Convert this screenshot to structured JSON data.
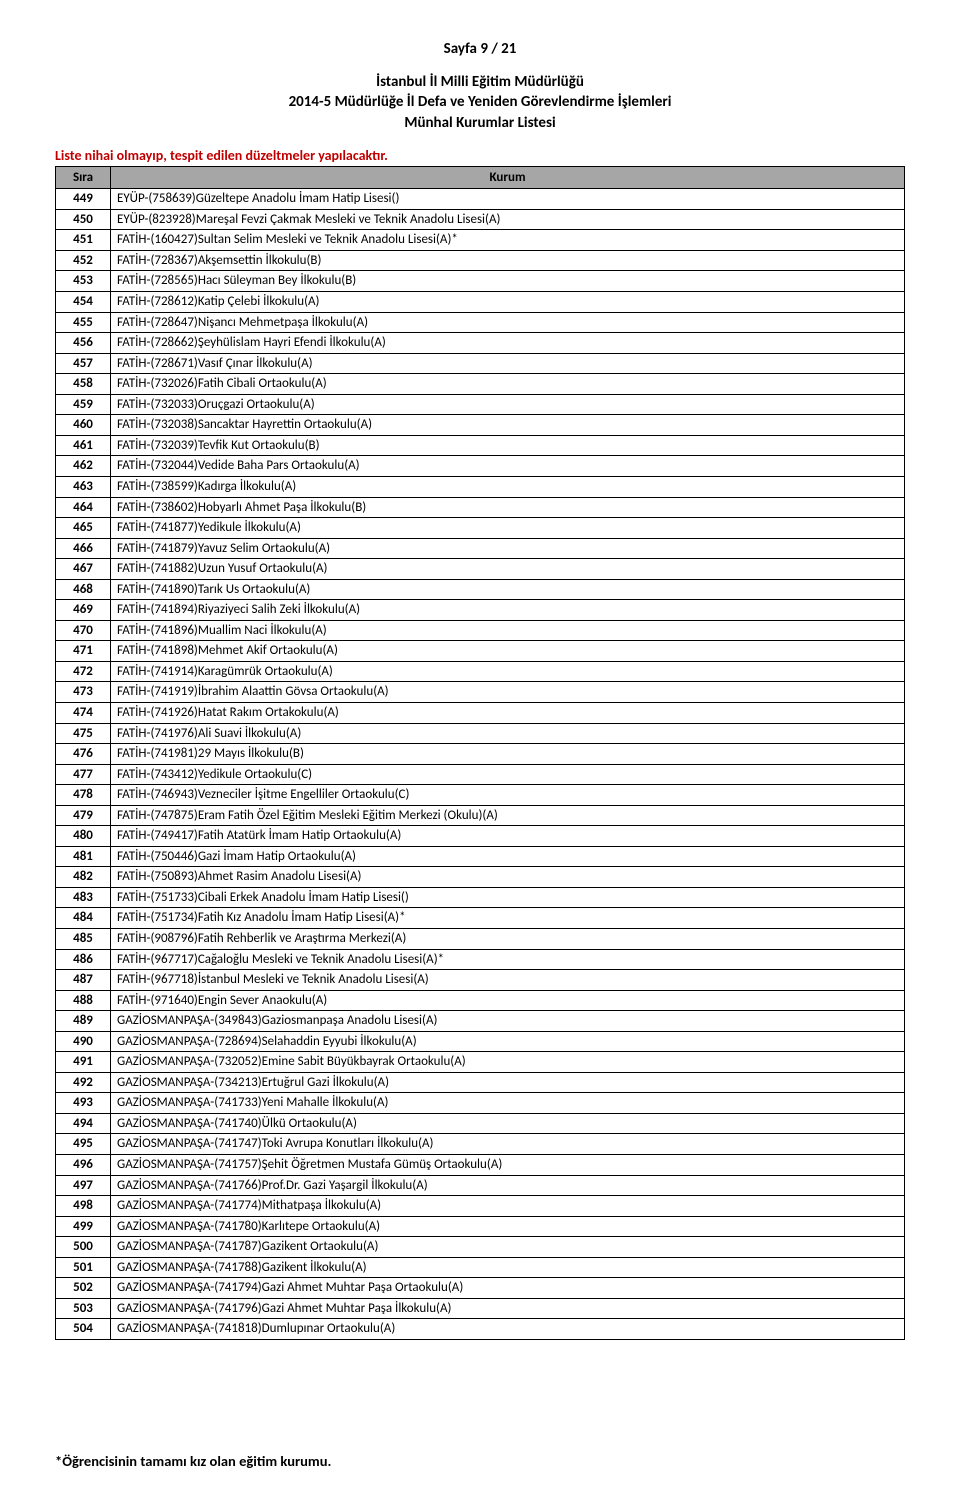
{
  "page_number": "Sayfa 9 / 21",
  "heading1": "İstanbul İl Milli Eğitim Müdürlüğü",
  "heading2": "2014-5 Müdürlüğe İl Defa ve Yeniden Görevlendirme İşlemleri",
  "heading3": "Münhal Kurumlar Listesi",
  "notice": "Liste nihai olmayıp, tespit edilen düzeltmeler yapılacaktır.",
  "columns": {
    "sira": "Sıra",
    "kurum": "Kurum"
  },
  "footnote": "*Öğrencisinin tamamı kız olan eğitim kurumu.",
  "colors": {
    "header_bg": "#a6a6a6",
    "border": "#000000",
    "notice": "#c00000",
    "text": "#000000",
    "background": "#ffffff"
  },
  "rows": [
    {
      "n": "449",
      "k": "EYÜP-(758639)Güzeltepe Anadolu İmam Hatip Lisesi()"
    },
    {
      "n": "450",
      "k": "EYÜP-(823928)Mareşal Fevzi Çakmak Mesleki ve Teknik Anadolu Lisesi(A)"
    },
    {
      "n": "451",
      "k": "FATİH-(160427)Sultan Selim Mesleki ve Teknik Anadolu Lisesi(A)*"
    },
    {
      "n": "452",
      "k": "FATİH-(728367)Akşemsettin İlkokulu(B)"
    },
    {
      "n": "453",
      "k": "FATİH-(728565)Hacı Süleyman Bey İlkokulu(B)"
    },
    {
      "n": "454",
      "k": "FATİH-(728612)Katip Çelebi İlkokulu(A)"
    },
    {
      "n": "455",
      "k": "FATİH-(728647)Nişancı Mehmetpaşa İlkokulu(A)"
    },
    {
      "n": "456",
      "k": "FATİH-(728662)Şeyhülislam Hayri Efendi İlkokulu(A)"
    },
    {
      "n": "457",
      "k": "FATİH-(728671)Vasıf Çınar İlkokulu(A)"
    },
    {
      "n": "458",
      "k": "FATİH-(732026)Fatih Cibali Ortaokulu(A)"
    },
    {
      "n": "459",
      "k": "FATİH-(732033)Oruçgazi Ortaokulu(A)"
    },
    {
      "n": "460",
      "k": "FATİH-(732038)Sancaktar Hayrettin Ortaokulu(A)"
    },
    {
      "n": "461",
      "k": "FATİH-(732039)Tevfik Kut Ortaokulu(B)"
    },
    {
      "n": "462",
      "k": "FATİH-(732044)Vedide Baha Pars Ortaokulu(A)"
    },
    {
      "n": "463",
      "k": "FATİH-(738599)Kadırga İlkokulu(A)"
    },
    {
      "n": "464",
      "k": "FATİH-(738602)Hobyarlı Ahmet Paşa İlkokulu(B)"
    },
    {
      "n": "465",
      "k": "FATİH-(741877)Yedikule İlkokulu(A)"
    },
    {
      "n": "466",
      "k": "FATİH-(741879)Yavuz Selim Ortaokulu(A)"
    },
    {
      "n": "467",
      "k": "FATİH-(741882)Uzun Yusuf Ortaokulu(A)"
    },
    {
      "n": "468",
      "k": "FATİH-(741890)Tarık Us Ortaokulu(A)"
    },
    {
      "n": "469",
      "k": "FATİH-(741894)Riyaziyeci Salih Zeki İlkokulu(A)"
    },
    {
      "n": "470",
      "k": "FATİH-(741896)Muallim Naci İlkokulu(A)"
    },
    {
      "n": "471",
      "k": "FATİH-(741898)Mehmet Akif Ortaokulu(A)"
    },
    {
      "n": "472",
      "k": "FATİH-(741914)Karagümrük Ortaokulu(A)"
    },
    {
      "n": "473",
      "k": "FATİH-(741919)İbrahim Alaattin Gövsa Ortaokulu(A)"
    },
    {
      "n": "474",
      "k": "FATİH-(741926)Hatat Rakım Ortakokulu(A)"
    },
    {
      "n": "475",
      "k": "FATİH-(741976)Ali Suavi İlkokulu(A)"
    },
    {
      "n": "476",
      "k": "FATİH-(741981)29 Mayıs İlkokulu(B)"
    },
    {
      "n": "477",
      "k": "FATİH-(743412)Yedikule Ortaokulu(C)"
    },
    {
      "n": "478",
      "k": "FATİH-(746943)Vezneciler İşitme Engelliler Ortaokulu(C)"
    },
    {
      "n": "479",
      "k": "FATİH-(747875)Eram Fatih Özel Eğitim Mesleki Eğitim Merkezi (Okulu)(A)"
    },
    {
      "n": "480",
      "k": "FATİH-(749417)Fatih Atatürk İmam Hatip Ortaokulu(A)"
    },
    {
      "n": "481",
      "k": "FATİH-(750446)Gazi İmam Hatip Ortaokulu(A)"
    },
    {
      "n": "482",
      "k": "FATİH-(750893)Ahmet Rasim Anadolu Lisesi(A)"
    },
    {
      "n": "483",
      "k": "FATİH-(751733)Cibali Erkek Anadolu İmam Hatip Lisesi()"
    },
    {
      "n": "484",
      "k": "FATİH-(751734)Fatih Kız Anadolu İmam Hatip Lisesi(A)*"
    },
    {
      "n": "485",
      "k": "FATİH-(908796)Fatih Rehberlik ve Araştırma Merkezi(A)"
    },
    {
      "n": "486",
      "k": "FATİH-(967717)Cağaloğlu Mesleki ve Teknik Anadolu Lisesi(A)*"
    },
    {
      "n": "487",
      "k": "FATİH-(967718)İstanbul Mesleki ve Teknik Anadolu Lisesi(A)"
    },
    {
      "n": "488",
      "k": "FATİH-(971640)Engin Sever Anaokulu(A)"
    },
    {
      "n": "489",
      "k": "GAZİOSMANPAŞA-(349843)Gaziosmanpaşa Anadolu Lisesi(A)"
    },
    {
      "n": "490",
      "k": "GAZİOSMANPAŞA-(728694)Selahaddin Eyyubi İlkokulu(A)"
    },
    {
      "n": "491",
      "k": "GAZİOSMANPAŞA-(732052)Emine Sabit Büyükbayrak Ortaokulu(A)"
    },
    {
      "n": "492",
      "k": "GAZİOSMANPAŞA-(734213)Ertuğrul Gazi İlkokulu(A)"
    },
    {
      "n": "493",
      "k": "GAZİOSMANPAŞA-(741733)Yeni Mahalle İlkokulu(A)"
    },
    {
      "n": "494",
      "k": "GAZİOSMANPAŞA-(741740)Ülkü Ortaokulu(A)"
    },
    {
      "n": "495",
      "k": "GAZİOSMANPAŞA-(741747)Toki Avrupa Konutları İlkokulu(A)"
    },
    {
      "n": "496",
      "k": "GAZİOSMANPAŞA-(741757)Şehit Öğretmen Mustafa Gümüş Ortaokulu(A)"
    },
    {
      "n": "497",
      "k": "GAZİOSMANPAŞA-(741766)Prof.Dr. Gazi Yaşargil İlkokulu(A)"
    },
    {
      "n": "498",
      "k": "GAZİOSMANPAŞA-(741774)Mithatpaşa İlkokulu(A)"
    },
    {
      "n": "499",
      "k": "GAZİOSMANPAŞA-(741780)Karlıtepe Ortaokulu(A)"
    },
    {
      "n": "500",
      "k": "GAZİOSMANPAŞA-(741787)Gazikent Ortaokulu(A)"
    },
    {
      "n": "501",
      "k": "GAZİOSMANPAŞA-(741788)Gazikent İlkokulu(A)"
    },
    {
      "n": "502",
      "k": "GAZİOSMANPAŞA-(741794)Gazi Ahmet Muhtar Paşa Ortaokulu(A)"
    },
    {
      "n": "503",
      "k": "GAZİOSMANPAŞA-(741796)Gazi Ahmet Muhtar Paşa İlkokulu(A)"
    },
    {
      "n": "504",
      "k": "GAZİOSMANPAŞA-(741818)Dumlupınar Ortaokulu(A)"
    }
  ]
}
